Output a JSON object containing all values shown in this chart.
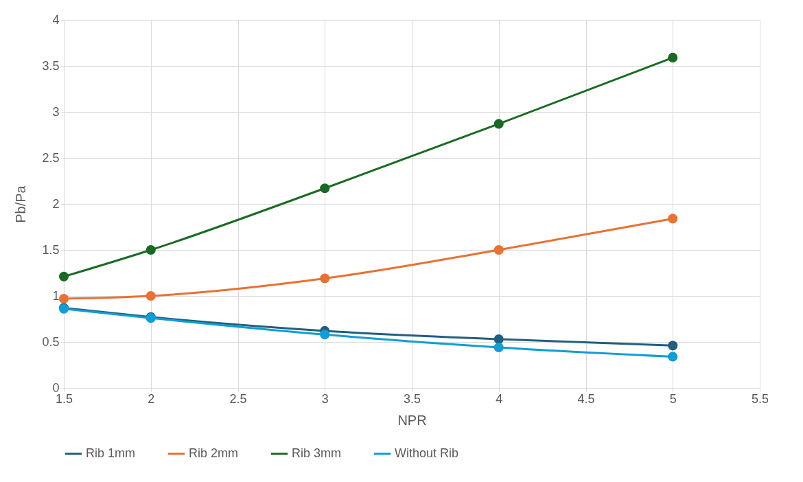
{
  "chart_data": {
    "type": "line",
    "xlabel": "NPR",
    "ylabel": "Pb/Pa",
    "x": [
      1.5,
      2,
      3,
      4,
      5
    ],
    "series": [
      {
        "name": "Rib 1mm",
        "color": "#215f80",
        "values": [
          0.87,
          0.77,
          0.62,
          0.53,
          0.46
        ]
      },
      {
        "name": "Rib 2mm",
        "color": "#e97132",
        "values": [
          0.97,
          1.0,
          1.19,
          1.5,
          1.84
        ]
      },
      {
        "name": "Rib 3mm",
        "color": "#196b24",
        "values": [
          1.21,
          1.5,
          2.17,
          2.87,
          3.59
        ]
      },
      {
        "name": "Without Rib",
        "color": "#0f9ed5",
        "values": [
          0.86,
          0.76,
          0.58,
          0.44,
          0.34
        ]
      }
    ],
    "xlim": [
      1.5,
      5.5
    ],
    "xticks": [
      1.5,
      2,
      2.5,
      3,
      3.5,
      4,
      4.5,
      5,
      5.5
    ],
    "ylim": [
      0,
      4
    ],
    "yticks": [
      0,
      0.5,
      1,
      1.5,
      2,
      2.5,
      3,
      3.5,
      4
    ],
    "grid": true,
    "legend": "bottom",
    "marker": "circle",
    "line_style": "solid"
  }
}
